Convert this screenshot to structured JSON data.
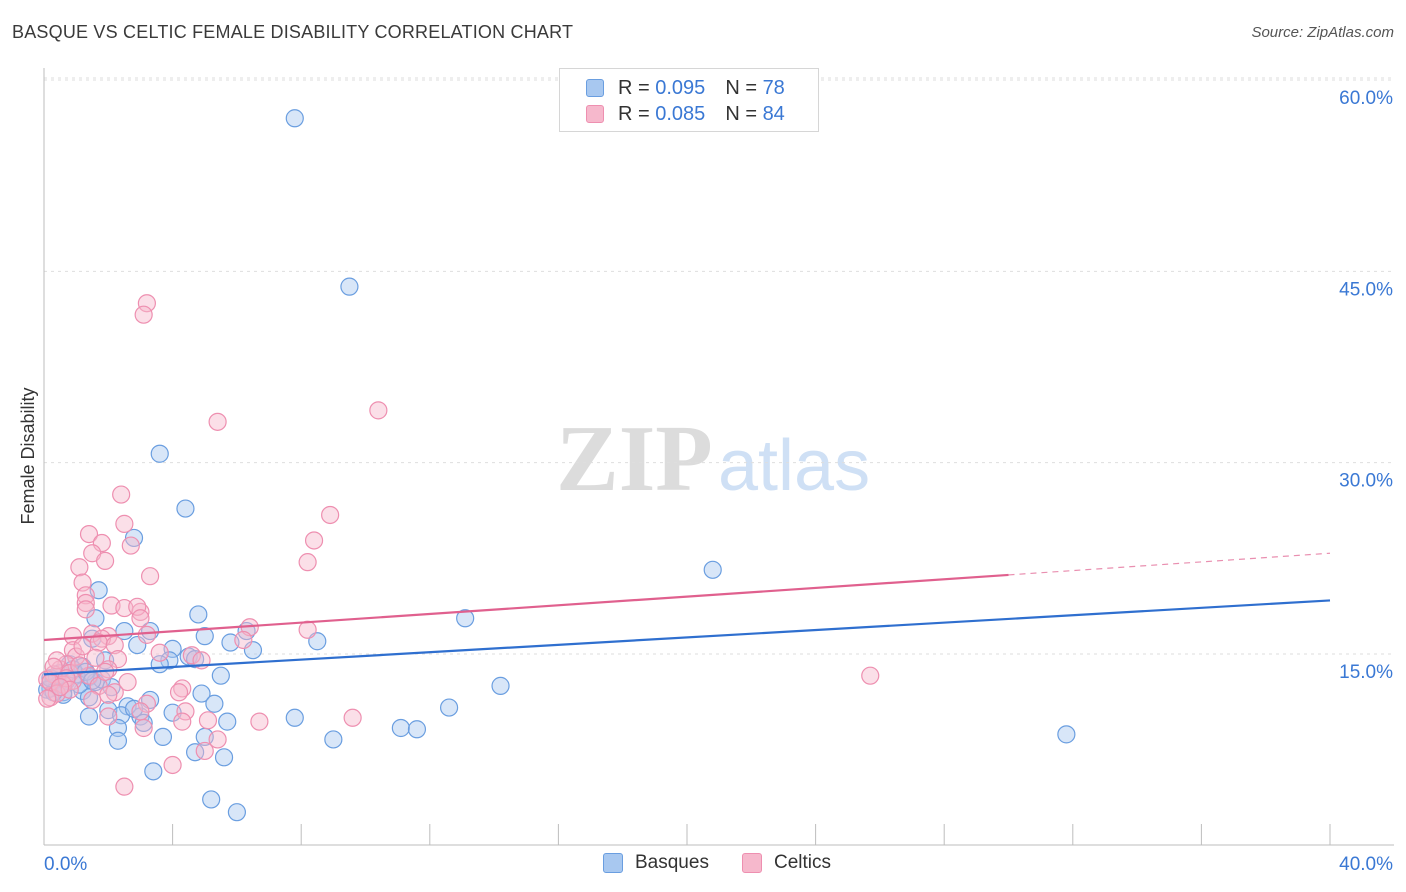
{
  "header": {
    "title": "BASQUE VS CELTIC FEMALE DISABILITY CORRELATION CHART",
    "source": "Source: ZipAtlas.com"
  },
  "watermark": {
    "zip": "ZIP",
    "atlas": "atlas"
  },
  "colors": {
    "basques_fill": "#a8c8f0",
    "basques_stroke": "#6a9ee0",
    "basques_line": "#2f6fcf",
    "celtics_fill": "#f6b8cc",
    "celtics_stroke": "#ee8fb0",
    "celtics_line": "#e0608e",
    "axis_label": "#3a78d4"
  },
  "legend": {
    "rows": [
      {
        "series": "basques",
        "r_label": "R =",
        "r_value": "0.095",
        "n_label": "N =",
        "n_value": "78"
      },
      {
        "series": "celtics",
        "r_label": "R =",
        "r_value": "0.085",
        "n_label": "N =",
        "n_value": "84"
      }
    ]
  },
  "chart_data": {
    "type": "scatter",
    "title": "BASQUE VS CELTIC FEMALE DISABILITY CORRELATION CHART",
    "xlabel": "",
    "ylabel": "Female Disability",
    "xlim": [
      0,
      40
    ],
    "ylim": [
      0,
      60
    ],
    "x_tick_labels": [
      "0.0%",
      "40.0%"
    ],
    "y_ticks": [
      15,
      30,
      45,
      60
    ],
    "y_tick_labels": [
      "15.0%",
      "30.0%",
      "45.0%",
      "60.0%"
    ],
    "grid": true,
    "legend_placement": "bottom-center",
    "series": [
      {
        "name": "Basques",
        "trend": {
          "x": [
            0,
            40
          ],
          "y": [
            13.4,
            19.2
          ]
        },
        "points": [
          [
            7.8,
            57.0
          ],
          [
            9.5,
            43.8
          ],
          [
            3.6,
            30.7
          ],
          [
            4.4,
            26.4
          ],
          [
            20.8,
            21.6
          ],
          [
            2.8,
            24.1
          ],
          [
            1.7,
            20.0
          ],
          [
            1.6,
            17.8
          ],
          [
            4.8,
            18.1
          ],
          [
            13.1,
            17.8
          ],
          [
            2.5,
            16.8
          ],
          [
            3.3,
            16.8
          ],
          [
            5.0,
            16.4
          ],
          [
            6.3,
            16.8
          ],
          [
            1.5,
            16.2
          ],
          [
            5.8,
            15.9
          ],
          [
            8.5,
            16.0
          ],
          [
            2.9,
            15.7
          ],
          [
            4.0,
            15.4
          ],
          [
            6.5,
            15.3
          ],
          [
            4.5,
            14.8
          ],
          [
            3.9,
            14.5
          ],
          [
            1.9,
            14.5
          ],
          [
            4.7,
            14.6
          ],
          [
            0.8,
            14.2
          ],
          [
            1.2,
            14.0
          ],
          [
            0.5,
            13.5
          ],
          [
            1.0,
            13.4
          ],
          [
            1.4,
            13.2
          ],
          [
            5.5,
            13.3
          ],
          [
            0.3,
            13.0
          ],
          [
            0.7,
            12.9
          ],
          [
            1.6,
            12.8
          ],
          [
            0.4,
            12.5
          ],
          [
            0.2,
            12.3
          ],
          [
            1.2,
            12.1
          ],
          [
            0.6,
            12.0
          ],
          [
            4.9,
            11.9
          ],
          [
            14.2,
            12.5
          ],
          [
            1.4,
            11.6
          ],
          [
            3.3,
            11.4
          ],
          [
            5.3,
            11.1
          ],
          [
            2.6,
            10.9
          ],
          [
            2.0,
            10.6
          ],
          [
            2.4,
            10.2
          ],
          [
            3.0,
            10.1
          ],
          [
            4.0,
            10.4
          ],
          [
            1.4,
            10.1
          ],
          [
            7.8,
            10.0
          ],
          [
            5.7,
            9.7
          ],
          [
            3.1,
            9.6
          ],
          [
            11.1,
            9.2
          ],
          [
            11.6,
            9.1
          ],
          [
            12.6,
            10.8
          ],
          [
            31.8,
            8.7
          ],
          [
            2.3,
            9.2
          ],
          [
            3.7,
            8.5
          ],
          [
            5.0,
            8.5
          ],
          [
            9.0,
            8.3
          ],
          [
            2.3,
            8.2
          ],
          [
            4.7,
            7.3
          ],
          [
            5.6,
            6.9
          ],
          [
            3.4,
            5.8
          ],
          [
            5.2,
            3.6
          ],
          [
            6.0,
            2.6
          ],
          [
            0.1,
            12.2
          ],
          [
            0.9,
            13.8
          ],
          [
            1.8,
            13.0
          ],
          [
            2.1,
            12.4
          ],
          [
            0.4,
            13.2
          ],
          [
            0.6,
            11.8
          ],
          [
            1.1,
            12.6
          ],
          [
            2.8,
            10.7
          ],
          [
            3.6,
            14.2
          ],
          [
            1.3,
            13.6
          ],
          [
            0.3,
            12.0
          ],
          [
            1.5,
            12.9
          ],
          [
            0.2,
            13.1
          ]
        ]
      },
      {
        "name": "Celtics",
        "trend": {
          "x": [
            0,
            30
          ],
          "y": [
            16.1,
            21.2
          ],
          "dashed_to": [
            40,
            22.9
          ]
        },
        "points": [
          [
            3.2,
            42.5
          ],
          [
            3.1,
            41.6
          ],
          [
            10.4,
            34.1
          ],
          [
            5.4,
            33.2
          ],
          [
            2.4,
            27.5
          ],
          [
            8.9,
            25.9
          ],
          [
            2.5,
            25.2
          ],
          [
            1.4,
            24.4
          ],
          [
            8.4,
            23.9
          ],
          [
            1.8,
            23.7
          ],
          [
            2.7,
            23.5
          ],
          [
            1.5,
            22.9
          ],
          [
            1.9,
            22.3
          ],
          [
            8.2,
            22.2
          ],
          [
            1.1,
            21.8
          ],
          [
            3.3,
            21.1
          ],
          [
            1.2,
            20.6
          ],
          [
            1.3,
            19.6
          ],
          [
            1.3,
            19.0
          ],
          [
            2.1,
            18.8
          ],
          [
            2.5,
            18.6
          ],
          [
            1.3,
            18.5
          ],
          [
            3.0,
            18.3
          ],
          [
            2.9,
            18.7
          ],
          [
            3.0,
            17.8
          ],
          [
            6.4,
            17.1
          ],
          [
            8.2,
            16.9
          ],
          [
            3.2,
            16.5
          ],
          [
            0.9,
            16.4
          ],
          [
            1.5,
            16.6
          ],
          [
            2.0,
            16.4
          ],
          [
            1.8,
            16.2
          ],
          [
            6.2,
            16.1
          ],
          [
            1.7,
            15.9
          ],
          [
            2.2,
            15.7
          ],
          [
            0.9,
            15.3
          ],
          [
            3.6,
            15.1
          ],
          [
            4.6,
            14.9
          ],
          [
            4.9,
            14.5
          ],
          [
            2.3,
            14.6
          ],
          [
            1.0,
            14.8
          ],
          [
            0.7,
            14.2
          ],
          [
            0.5,
            13.8
          ],
          [
            2.0,
            13.8
          ],
          [
            0.8,
            13.5
          ],
          [
            1.4,
            13.3
          ],
          [
            25.7,
            13.3
          ],
          [
            0.3,
            13.4
          ],
          [
            0.1,
            13.0
          ],
          [
            0.9,
            12.9
          ],
          [
            1.7,
            12.5
          ],
          [
            4.3,
            12.3
          ],
          [
            4.2,
            12.0
          ],
          [
            2.2,
            12.0
          ],
          [
            2.0,
            11.8
          ],
          [
            0.2,
            11.6
          ],
          [
            1.5,
            11.4
          ],
          [
            3.2,
            11.1
          ],
          [
            4.4,
            10.5
          ],
          [
            3.0,
            10.5
          ],
          [
            2.0,
            10.1
          ],
          [
            9.6,
            10.0
          ],
          [
            5.1,
            9.8
          ],
          [
            6.7,
            9.7
          ],
          [
            4.3,
            9.7
          ],
          [
            3.1,
            9.2
          ],
          [
            5.4,
            8.3
          ],
          [
            5.0,
            7.4
          ],
          [
            4.0,
            6.3
          ],
          [
            2.5,
            4.6
          ],
          [
            0.4,
            14.5
          ],
          [
            0.6,
            12.6
          ],
          [
            1.1,
            14.1
          ],
          [
            0.2,
            12.8
          ],
          [
            0.7,
            13.1
          ],
          [
            1.6,
            14.7
          ],
          [
            2.6,
            12.8
          ],
          [
            0.4,
            11.9
          ],
          [
            1.2,
            15.6
          ],
          [
            0.8,
            12.2
          ],
          [
            0.3,
            14.0
          ],
          [
            1.9,
            13.6
          ],
          [
            0.5,
            12.4
          ],
          [
            0.1,
            11.5
          ]
        ]
      }
    ]
  },
  "bottom_legend": {
    "items": [
      {
        "series": "basques",
        "label": "Basques"
      },
      {
        "series": "celtics",
        "label": "Celtics"
      }
    ]
  }
}
